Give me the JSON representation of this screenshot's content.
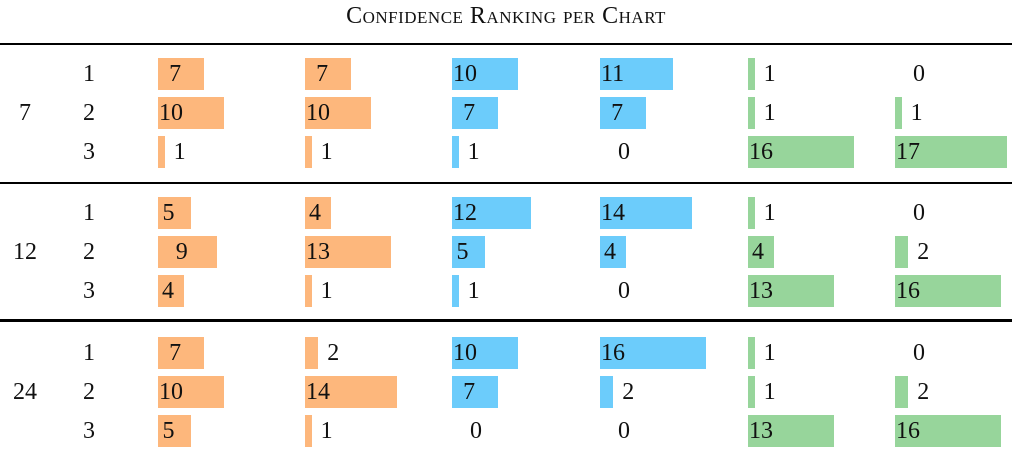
{
  "title": "Confidence Ranking per Chart",
  "colors": {
    "orange": "#fdb77c",
    "blue": "#6cccfb",
    "green": "#97d59b"
  },
  "column_colors": [
    "orange",
    "orange",
    "blue",
    "blue",
    "green",
    "green"
  ],
  "chart_data": {
    "type": "table",
    "title": "Confidence Ranking per Chart",
    "groups": [
      {
        "label": "7",
        "rows": [
          {
            "rank": "1",
            "values": [
              7,
              7,
              10,
              11,
              1,
              0
            ]
          },
          {
            "rank": "2",
            "values": [
              10,
              10,
              7,
              7,
              1,
              1
            ]
          },
          {
            "rank": "3",
            "values": [
              1,
              1,
              1,
              0,
              16,
              17
            ]
          }
        ]
      },
      {
        "label": "12",
        "rows": [
          {
            "rank": "1",
            "values": [
              5,
              4,
              12,
              14,
              1,
              0
            ]
          },
          {
            "rank": "2",
            "values": [
              9,
              13,
              5,
              4,
              4,
              2
            ]
          },
          {
            "rank": "3",
            "values": [
              4,
              1,
              1,
              0,
              13,
              16
            ]
          }
        ]
      },
      {
        "label": "24",
        "rows": [
          {
            "rank": "1",
            "values": [
              7,
              2,
              10,
              16,
              1,
              0
            ]
          },
          {
            "rank": "2",
            "values": [
              10,
              14,
              7,
              2,
              1,
              2
            ]
          },
          {
            "rank": "3",
            "values": [
              5,
              1,
              0,
              0,
              13,
              16
            ]
          }
        ]
      }
    ]
  }
}
